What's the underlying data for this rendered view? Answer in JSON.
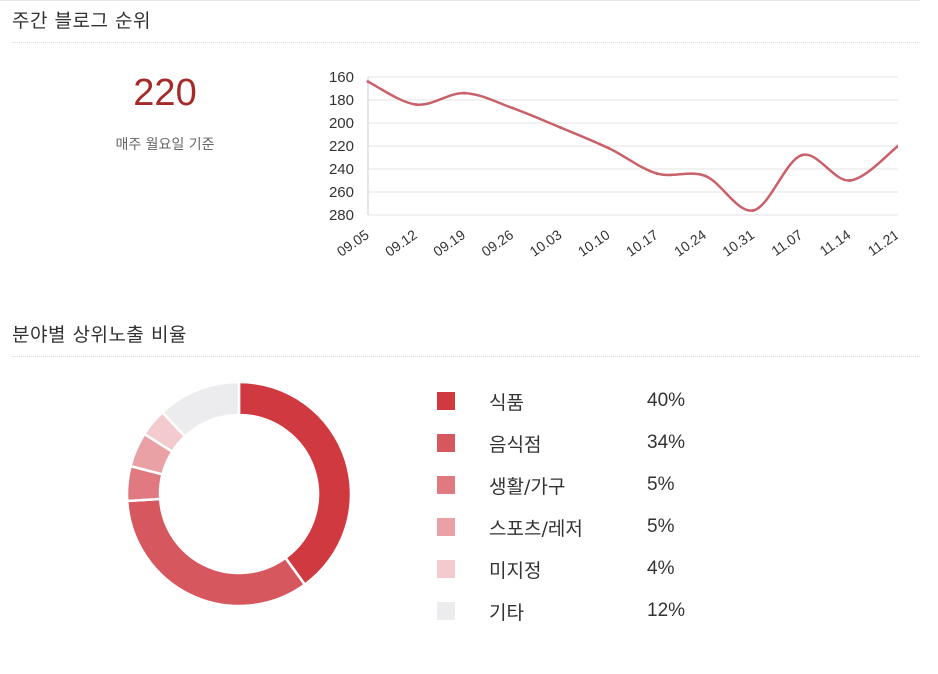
{
  "rank_section": {
    "title": "주간 블로그 순위",
    "current_rank": "220",
    "note": "매주 월요일 기준"
  },
  "category_section": {
    "title": "분야별 상위노출 비율"
  },
  "colors": {
    "line": "#c9616a",
    "rank": "#a52a2a"
  },
  "chart_data": [
    {
      "type": "line",
      "x": [
        "09.05",
        "09.12",
        "09.19",
        "09.26",
        "10.03",
        "10.10",
        "10.17",
        "10.24",
        "10.31",
        "11.07",
        "11.14",
        "11.21"
      ],
      "series": [
        {
          "values": [
            164,
            184,
            174,
            187,
            204,
            222,
            244,
            246,
            276,
            228,
            250,
            220
          ],
          "color": "#c9616a"
        }
      ],
      "y_ticks": [
        160,
        180,
        200,
        220,
        240,
        260,
        280
      ],
      "ylim": [
        160,
        280
      ],
      "y_reversed": true,
      "grid": true,
      "xlabel": "",
      "ylabel": ""
    },
    {
      "type": "pie",
      "donut": true,
      "slices": [
        {
          "label": "식품",
          "value": 40,
          "display": "40%",
          "color": "#d0393f"
        },
        {
          "label": "음식점",
          "value": 34,
          "display": "34%",
          "color": "#d7575e"
        },
        {
          "label": "생활/가구",
          "value": 5,
          "display": "5%",
          "color": "#e07a80"
        },
        {
          "label": "스포츠/레저",
          "value": 5,
          "display": "5%",
          "color": "#e9a1a6"
        },
        {
          "label": "미지정",
          "value": 4,
          "display": "4%",
          "color": "#f3cacd"
        },
        {
          "label": "기타",
          "value": 12,
          "display": "12%",
          "color": "#ececee"
        }
      ]
    }
  ]
}
